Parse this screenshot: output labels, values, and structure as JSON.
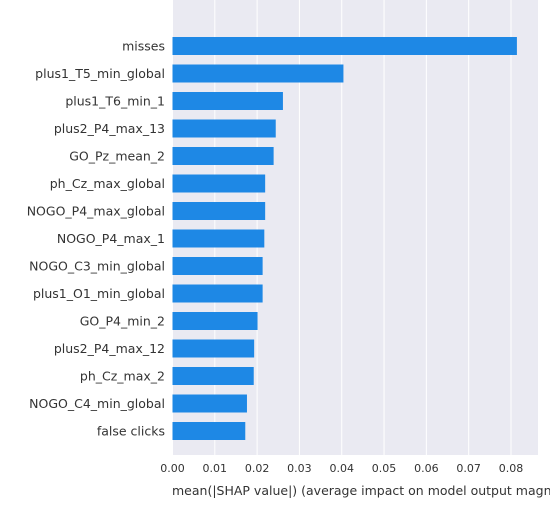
{
  "chart_data": {
    "type": "bar",
    "orientation": "horizontal",
    "categories": [
      "misses",
      "plus1_T5_min_global",
      "plus1_T6_min_1",
      "plus2_P4_max_13",
      "GO_Pz_mean_2",
      "ph_Cz_max_global",
      "NOGO_P4_max_global",
      "NOGO_P4_max_1",
      "NOGO_C3_min_global",
      "plus1_O1_min_global",
      "GO_P4_min_2",
      "plus2_P4_max_12",
      "ph_Cz_max_2",
      "NOGO_C4_min_global",
      "false clicks"
    ],
    "values": [
      0.0814,
      0.0404,
      0.0261,
      0.0244,
      0.0239,
      0.0219,
      0.0219,
      0.0217,
      0.0213,
      0.0213,
      0.0201,
      0.0193,
      0.0192,
      0.0176,
      0.0172
    ],
    "xlabel": "mean(|SHAP value|) (average impact on model output magnitu",
    "ylabel": "",
    "xlim": [
      0,
      0.085
    ],
    "xticks": [
      "0.00",
      "0.01",
      "0.02",
      "0.03",
      "0.04",
      "0.05",
      "0.06",
      "0.07",
      "0.08"
    ],
    "grid": true,
    "bar_color": "#1e88e5",
    "background_color": "#eaeaf2"
  }
}
